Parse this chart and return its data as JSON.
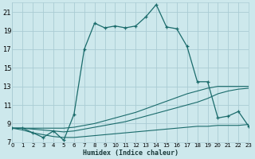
{
  "xlabel": "Humidex (Indice chaleur)",
  "bg_color": "#cde8ec",
  "grid_color": "#aaccd4",
  "line_color": "#1a6b6b",
  "xlim": [
    0,
    23
  ],
  "ylim": [
    7,
    22
  ],
  "yticks": [
    7,
    9,
    11,
    13,
    15,
    17,
    19,
    21
  ],
  "xticks": [
    0,
    1,
    2,
    3,
    4,
    5,
    6,
    7,
    8,
    9,
    10,
    11,
    12,
    13,
    14,
    15,
    16,
    17,
    18,
    19,
    20,
    21,
    22,
    23
  ],
  "line1_x": [
    0,
    1,
    2,
    3,
    4,
    5,
    6,
    7,
    8,
    9,
    10,
    11,
    12,
    13,
    14,
    15,
    16,
    17,
    18,
    19,
    20,
    21,
    22,
    23
  ],
  "line1_y": [
    8.5,
    8.5,
    8.0,
    7.5,
    8.2,
    7.2,
    10.0,
    17.0,
    19.8,
    19.3,
    19.5,
    19.3,
    19.5,
    20.5,
    21.8,
    19.4,
    19.2,
    17.3,
    13.5,
    13.5,
    9.6,
    9.8,
    10.3,
    8.7
  ],
  "line2_x": [
    0,
    1,
    2,
    3,
    4,
    5,
    6,
    7,
    8,
    9,
    10,
    11,
    12,
    13,
    14,
    15,
    16,
    17,
    18,
    19,
    20,
    21,
    22,
    23
  ],
  "line2_y": [
    8.5,
    8.5,
    8.5,
    8.5,
    8.5,
    8.5,
    8.6,
    8.8,
    9.0,
    9.3,
    9.6,
    9.9,
    10.2,
    10.6,
    11.0,
    11.4,
    11.8,
    12.2,
    12.5,
    12.8,
    13.0,
    13.0,
    13.0,
    13.0
  ],
  "line3_x": [
    0,
    1,
    2,
    3,
    4,
    5,
    6,
    7,
    8,
    9,
    10,
    11,
    12,
    13,
    14,
    15,
    16,
    17,
    18,
    19,
    20,
    21,
    22,
    23
  ],
  "line3_y": [
    8.5,
    8.5,
    8.4,
    8.3,
    8.2,
    8.1,
    8.2,
    8.4,
    8.6,
    8.8,
    9.0,
    9.2,
    9.5,
    9.8,
    10.1,
    10.4,
    10.7,
    11.0,
    11.3,
    11.7,
    12.2,
    12.5,
    12.7,
    12.8
  ],
  "line4_x": [
    0,
    1,
    2,
    3,
    4,
    5,
    6,
    7,
    8,
    9,
    10,
    11,
    12,
    13,
    14,
    15,
    16,
    17,
    18,
    19,
    20,
    21,
    22,
    23
  ],
  "line4_y": [
    8.5,
    8.3,
    8.0,
    7.8,
    7.6,
    7.5,
    7.5,
    7.6,
    7.7,
    7.8,
    7.9,
    8.0,
    8.1,
    8.2,
    8.3,
    8.4,
    8.5,
    8.6,
    8.7,
    8.7,
    8.8,
    8.8,
    8.8,
    8.9
  ]
}
